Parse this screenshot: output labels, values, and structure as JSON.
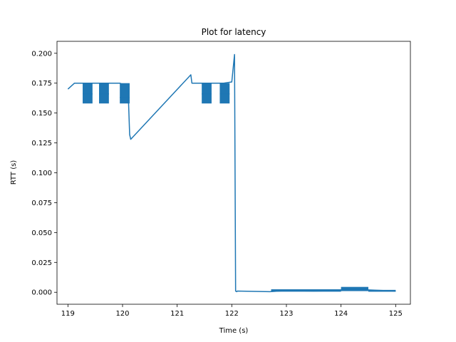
{
  "chart_data": {
    "type": "line",
    "title": "Plot for latency",
    "xlabel": "Time (s)",
    "ylabel": "RTT (s)",
    "xlim": [
      118.8,
      125.27
    ],
    "ylim": [
      -0.01,
      0.21
    ],
    "xticks": [
      119,
      120,
      121,
      122,
      123,
      124,
      125
    ],
    "yticks": [
      0.0,
      0.025,
      0.05,
      0.075,
      0.1,
      0.125,
      0.15,
      0.175,
      0.2
    ],
    "xtick_labels": [
      "119",
      "120",
      "121",
      "122",
      "123",
      "124",
      "125"
    ],
    "ytick_labels": [
      "0.000",
      "0.025",
      "0.050",
      "0.075",
      "0.100",
      "0.125",
      "0.150",
      "0.175",
      "0.200"
    ],
    "grid": false,
    "color": "#1f77b4",
    "series": [
      {
        "x": [
          119.0,
          119.12,
          119.28,
          119.6,
          119.95,
          120.1,
          120.13,
          120.15,
          121.25,
          121.27,
          121.5,
          121.85,
          122.0,
          122.05,
          122.07,
          122.09,
          122.1,
          122.7,
          123.0,
          123.5,
          124.0,
          124.5,
          125.0
        ],
        "y": [
          0.17,
          0.175,
          0.175,
          0.175,
          0.175,
          0.172,
          0.132,
          0.128,
          0.182,
          0.175,
          0.175,
          0.175,
          0.176,
          0.199,
          0.001,
          0.0005,
          0.001,
          0.0005,
          0.0015,
          0.001,
          0.0015,
          0.002,
          0.001
        ]
      }
    ],
    "oscillation_bands": [
      {
        "x_start": 119.27,
        "x_end": 119.45,
        "y_low": 0.158,
        "y_high": 0.175,
        "y_mid": 0.166
      },
      {
        "x_start": 119.57,
        "x_end": 119.75,
        "y_low": 0.158,
        "y_high": 0.175,
        "y_mid": 0.166
      },
      {
        "x_start": 119.95,
        "x_end": 120.13,
        "y_low": 0.158,
        "y_high": 0.175,
        "y_mid": 0.163
      },
      {
        "x_start": 121.45,
        "x_end": 121.63,
        "y_low": 0.158,
        "y_high": 0.175,
        "y_mid": 0.166
      },
      {
        "x_start": 121.78,
        "x_end": 121.96,
        "y_low": 0.158,
        "y_high": 0.175,
        "y_mid": 0.166
      },
      {
        "x_start": 122.72,
        "x_end": 124.0,
        "y_low": 0.0005,
        "y_high": 0.0025,
        "y_mid": 0.0015
      },
      {
        "x_start": 124.0,
        "x_end": 124.5,
        "y_low": 0.001,
        "y_high": 0.0045,
        "y_mid": 0.0025
      },
      {
        "x_start": 124.5,
        "x_end": 125.0,
        "y_low": 0.0005,
        "y_high": 0.002,
        "y_mid": 0.001
      }
    ]
  }
}
